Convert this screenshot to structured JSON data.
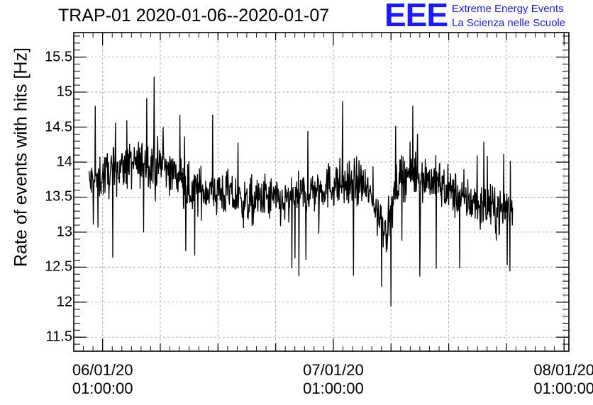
{
  "chart_data": {
    "type": "line",
    "title": "TRAP-01 2020-01-06--2020-01-07",
    "ylabel": "Rate of events with hits [Hz]",
    "xlabel": "",
    "ylim": [
      11.3,
      15.85
    ],
    "xlim": [
      "2020-01-05 22:00:00",
      "2020-01-08 01:30:00"
    ],
    "yticks": [
      "11.5",
      "12",
      "12.5",
      "13",
      "13.5",
      "14",
      "14.5",
      "15",
      "15.5"
    ],
    "xticks": [
      {
        "at": "2020-01-06 01:00:00",
        "line1": "06/01/20",
        "line2": "01:00:00"
      },
      {
        "at": "2020-01-07 01:00:00",
        "line1": "07/01/20",
        "line2": "01:00:00"
      },
      {
        "at": "2020-01-08 01:00:00",
        "line1": "08/01/20",
        "line2": "01:00:00"
      }
    ],
    "grid": true,
    "series": [
      {
        "color": "#000000",
        "x": [
          "2020-01-05 23:35",
          "2020-01-06 01:00",
          "2020-01-06 02:30",
          "2020-01-06 04:00",
          "2020-01-06 06:00",
          "2020-01-06 08:00",
          "2020-01-06 10:00",
          "2020-01-06 12:00",
          "2020-01-06 14:00",
          "2020-01-06 16:00",
          "2020-01-06 18:00",
          "2020-01-06 20:00",
          "2020-01-06 22:00",
          "2020-01-07 00:00",
          "2020-01-07 02:00",
          "2020-01-07 04:00",
          "2020-01-07 05:30",
          "2020-01-07 06:30",
          "2020-01-07 08:00",
          "2020-01-07 10:00",
          "2020-01-07 12:00",
          "2020-01-07 14:00",
          "2020-01-07 16:00",
          "2020-01-07 18:00",
          "2020-01-07 19:40"
        ],
        "y": [
          13.7,
          13.8,
          13.9,
          13.95,
          14.0,
          13.9,
          13.6,
          13.6,
          13.55,
          13.4,
          13.5,
          13.4,
          13.55,
          13.65,
          13.7,
          13.7,
          13.35,
          13.0,
          13.85,
          13.8,
          13.7,
          13.5,
          13.4,
          13.3,
          13.35
        ]
      }
    ]
  },
  "logo": {
    "letters": "EEE",
    "line1": "Extreme Energy Events",
    "line2": "La Scienza nelle Scuole",
    "color": "#1a1aff"
  }
}
